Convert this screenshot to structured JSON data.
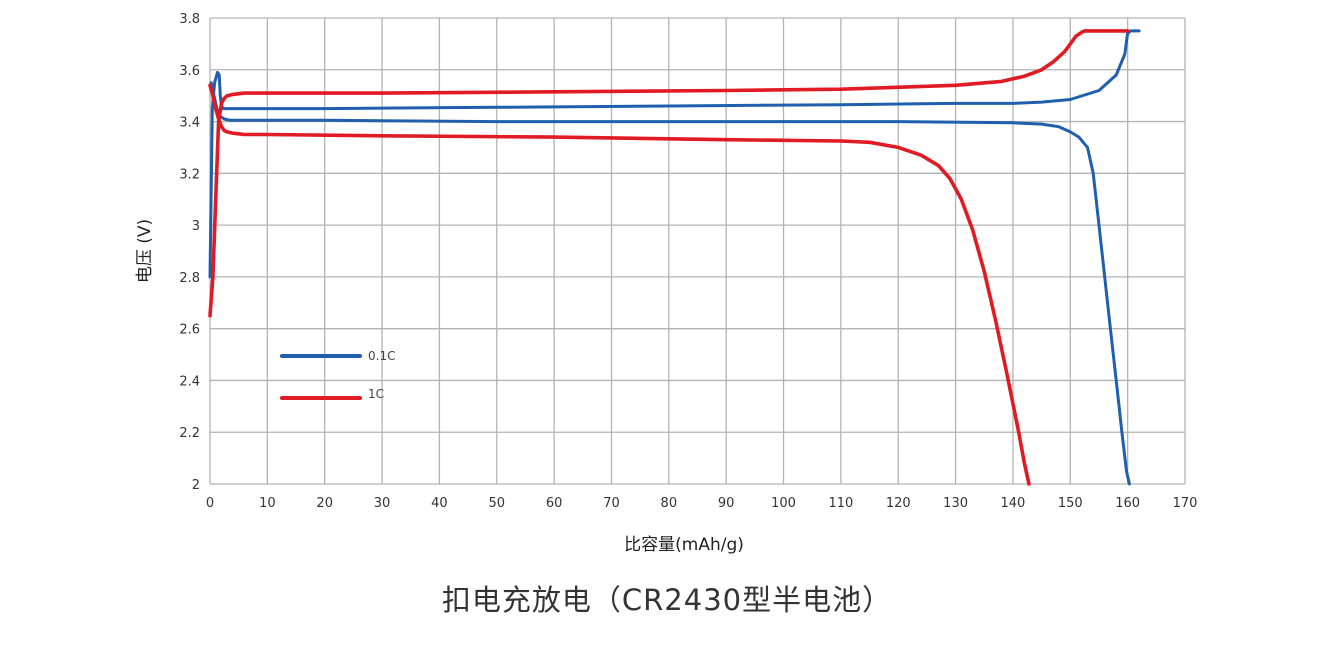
{
  "caption": "扣电充放电（CR2430型半电池）",
  "chart_data": {
    "type": "line",
    "title": "",
    "xlabel": "比容量(mAh/g)",
    "ylabel": "电压 (V)",
    "xlim": [
      0,
      170
    ],
    "ylim": [
      2,
      3.8
    ],
    "xticks": [
      "0",
      "10",
      "20",
      "30",
      "40",
      "50",
      "60",
      "70",
      "80",
      "90",
      "100",
      "110",
      "120",
      "130",
      "140",
      "150",
      "160",
      "170"
    ],
    "yticks": [
      "2",
      "2.2",
      "2.4",
      "2.6",
      "2.8",
      "3",
      "3.2",
      "3.4",
      "3.6",
      "3.8"
    ],
    "grid": true,
    "legend_position": "lower-left",
    "series": [
      {
        "name": "0.1C",
        "color": "#1f5fad",
        "segments": [
          {
            "x": [
              0,
              0.4,
              0.8,
              1.3,
              1.6,
              1.8,
              2.0,
              2.3,
              3,
              5,
              20,
              50,
              80,
              110,
              130,
              140,
              145,
              150,
              155,
              158,
              159.5,
              160,
              160.5,
              161,
              162
            ],
            "y": [
              2.8,
              3.45,
              3.55,
              3.59,
              3.58,
              3.5,
              3.46,
              3.45,
              3.45,
              3.45,
              3.45,
              3.455,
              3.46,
              3.465,
              3.47,
              3.47,
              3.475,
              3.485,
              3.52,
              3.58,
              3.66,
              3.74,
              3.75,
              3.75,
              3.75
            ]
          },
          {
            "x": [
              0.2,
              0.7,
              1.2,
              1.8,
              2.5,
              3.5,
              5,
              20,
              50,
              80,
              100,
              120,
              140,
              145,
              148,
              150,
              151.5,
              153,
              154,
              155,
              156,
              157,
              158,
              159,
              159.8,
              160.3
            ],
            "y": [
              3.55,
              3.5,
              3.45,
              3.42,
              3.41,
              3.405,
              3.405,
              3.405,
              3.4,
              3.4,
              3.4,
              3.4,
              3.395,
              3.39,
              3.38,
              3.36,
              3.34,
              3.3,
              3.2,
              3.0,
              2.8,
              2.6,
              2.4,
              2.2,
              2.05,
              2.0
            ]
          }
        ]
      },
      {
        "name": "1C",
        "color": "#e01b24",
        "segments": [
          {
            "x": [
              0,
              0.5,
              1,
              1.5,
              2,
              2.5,
              3,
              4,
              6,
              10,
              30,
              60,
              90,
              110,
              130,
              138,
              142,
              145,
              147,
              149,
              150,
              151,
              152,
              152.5,
              153,
              155,
              158,
              160
            ],
            "y": [
              2.65,
              2.8,
              3.1,
              3.4,
              3.47,
              3.49,
              3.5,
              3.505,
              3.51,
              3.51,
              3.51,
              3.515,
              3.52,
              3.525,
              3.54,
              3.555,
              3.575,
              3.6,
              3.63,
              3.67,
              3.7,
              3.73,
              3.745,
              3.75,
              3.75,
              3.75,
              3.75,
              3.75
            ]
          },
          {
            "x": [
              0,
              0.5,
              1,
              1.5,
              2,
              2.5,
              3,
              4,
              6,
              10,
              30,
              60,
              90,
              110,
              115,
              120,
              124,
              127,
              129,
              131,
              133,
              135,
              137,
              139,
              141,
              142,
              142.8
            ],
            "y": [
              3.54,
              3.5,
              3.45,
              3.41,
              3.38,
              3.365,
              3.36,
              3.355,
              3.35,
              3.35,
              3.345,
              3.34,
              3.33,
              3.325,
              3.32,
              3.3,
              3.27,
              3.23,
              3.18,
              3.1,
              2.98,
              2.82,
              2.63,
              2.42,
              2.2,
              2.08,
              2.0
            ]
          }
        ]
      }
    ]
  }
}
